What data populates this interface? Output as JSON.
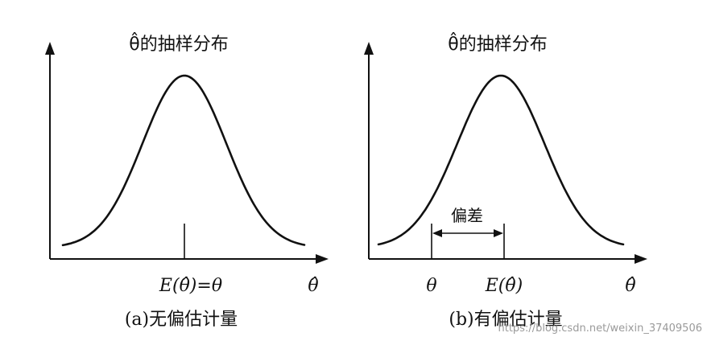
{
  "panels": [
    {
      "id": "unbiased",
      "title": "θ̂的抽样分布",
      "x_axis_label": "θ̂",
      "center_label": "E(θ̂)=θ",
      "caption": "(a)无偏估计量"
    },
    {
      "id": "biased",
      "title": "θ̂的抽样分布",
      "x_axis_label": "θ̂",
      "true_value_label": "θ",
      "center_label": "E(θ̂)",
      "bias_label": "偏差",
      "caption": "(b)有偏估计量"
    }
  ],
  "watermark": "https://blog.csdn.net/weixin_37409506",
  "colors": {
    "ink": "#111111",
    "watermark": "#9a9a9a",
    "background": "#ffffff"
  }
}
